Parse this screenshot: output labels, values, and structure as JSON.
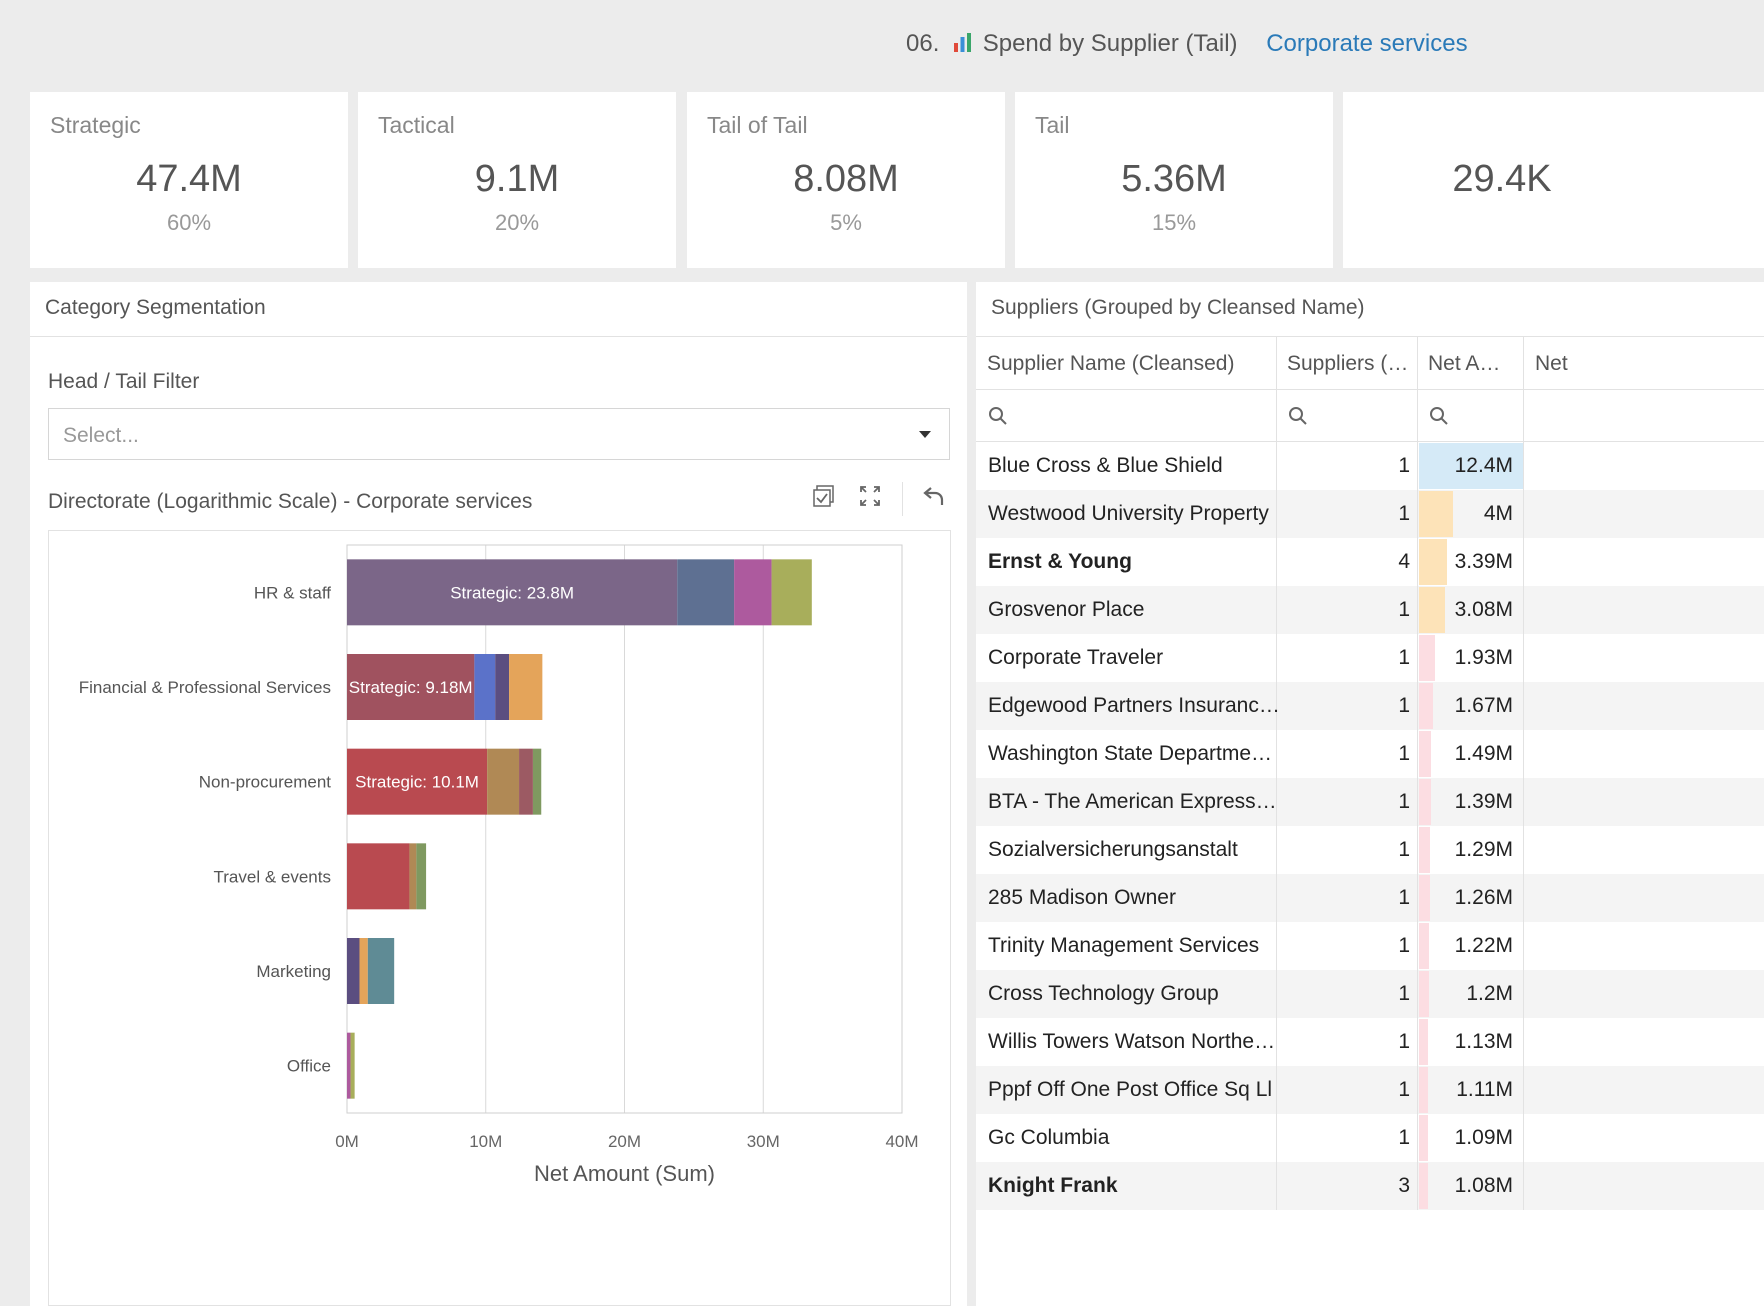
{
  "header": {
    "title_prefix": "06.",
    "title": "Spend by Supplier (Tail)",
    "link": "Corporate services",
    "chart_icon": "bar-chart-icon"
  },
  "kpis": [
    {
      "label": "Strategic",
      "value": "47.4M",
      "pct": "60%"
    },
    {
      "label": "Tactical",
      "value": "9.1M",
      "pct": "20%"
    },
    {
      "label": "Tail of Tail",
      "value": "8.08M",
      "pct": "5%"
    },
    {
      "label": "Tail",
      "value": "5.36M",
      "pct": "15%"
    },
    {
      "label": "",
      "value": "29.4K",
      "pct": ""
    }
  ],
  "segmentation": {
    "title": "Category Segmentation",
    "filter_label": "Head / Tail Filter",
    "filter_placeholder": "Select...",
    "chart_title": "Directorate (Logarithmic Scale) - Corporate services",
    "icons": [
      "checkbox-icon",
      "fullscreen-icon",
      "undo-icon"
    ]
  },
  "chart_data": {
    "type": "bar",
    "orientation": "horizontal",
    "stacked": true,
    "title": "Directorate (Logarithmic Scale) - Corporate services",
    "xlabel": "Net Amount (Sum)",
    "ylabel": "",
    "xlim": [
      0,
      40000000
    ],
    "x_ticks": [
      "0M",
      "10M",
      "20M",
      "30M",
      "40M"
    ],
    "categories": [
      "HR & staff",
      "Financial & Professional Services",
      "Non-procurement",
      "Travel & events",
      "Marketing",
      "Office"
    ],
    "grid": true,
    "rows": [
      {
        "category": "HR & staff",
        "segments": [
          {
            "value": 23800000,
            "color": "#7b6688",
            "label": "Strategic: 23.8M"
          },
          {
            "value": 4100000,
            "color": "#5e7092"
          },
          {
            "value": 2700000,
            "color": "#ad5a9e"
          },
          {
            "value": 2900000,
            "color": "#a8ae5b"
          }
        ]
      },
      {
        "category": "Financial & Professional Services",
        "segments": [
          {
            "value": 9180000,
            "color": "#a0525f",
            "label": "Strategic: 9.18M"
          },
          {
            "value": 1500000,
            "color": "#5b72c9"
          },
          {
            "value": 1000000,
            "color": "#5b4e80"
          },
          {
            "value": 2400000,
            "color": "#e4a45a"
          }
        ]
      },
      {
        "category": "Non-procurement",
        "segments": [
          {
            "value": 10100000,
            "color": "#b94a50",
            "label": "Strategic: 10.1M"
          },
          {
            "value": 2300000,
            "color": "#b08955"
          },
          {
            "value": 1000000,
            "color": "#9c5a63"
          },
          {
            "value": 600000,
            "color": "#7f9960"
          }
        ]
      },
      {
        "category": "Travel & events",
        "segments": [
          {
            "value": 4500000,
            "color": "#b94a50"
          },
          {
            "value": 500000,
            "color": "#b08955"
          },
          {
            "value": 700000,
            "color": "#7f9960"
          }
        ]
      },
      {
        "category": "Marketing",
        "segments": [
          {
            "value": 900000,
            "color": "#5b4e80"
          },
          {
            "value": 600000,
            "color": "#e4a45a"
          },
          {
            "value": 1900000,
            "color": "#5f8b95"
          }
        ]
      },
      {
        "category": "Office",
        "segments": [
          {
            "value": 250000,
            "color": "#ad5a9e"
          },
          {
            "value": 300000,
            "color": "#a8ae5b"
          }
        ]
      }
    ]
  },
  "suppliers": {
    "title": "Suppliers (Grouped by Cleansed Name)",
    "columns": [
      "Supplier Name (Cleansed)",
      "Suppliers (…",
      "Net A…",
      "Net"
    ],
    "search_icon": "search-icon",
    "max_amount": 12.4,
    "rows": [
      {
        "name": "Blue Cross & Blue Shield",
        "count": "1",
        "amount": "12.4M",
        "value": 12.4,
        "bold": false,
        "bar_color": "#d5eaf7"
      },
      {
        "name": "Westwood University Property",
        "count": "1",
        "amount": "4M",
        "value": 4.0,
        "bold": false,
        "bar_color": "#fde3b8"
      },
      {
        "name": "Ernst & Young",
        "count": "4",
        "amount": "3.39M",
        "value": 3.39,
        "bold": true,
        "bar_color": "#fde3b8"
      },
      {
        "name": "Grosvenor Place",
        "count": "1",
        "amount": "3.08M",
        "value": 3.08,
        "bold": false,
        "bar_color": "#fde3b8"
      },
      {
        "name": "Corporate Traveler",
        "count": "1",
        "amount": "1.93M",
        "value": 1.93,
        "bold": false,
        "bar_color": "#fcdde2"
      },
      {
        "name": "Edgewood Partners Insuranc…",
        "count": "1",
        "amount": "1.67M",
        "value": 1.67,
        "bold": false,
        "bar_color": "#fcdde2"
      },
      {
        "name": "Washington State Departme…",
        "count": "1",
        "amount": "1.49M",
        "value": 1.49,
        "bold": false,
        "bar_color": "#fcdde2"
      },
      {
        "name": "BTA - The American Express…",
        "count": "1",
        "amount": "1.39M",
        "value": 1.39,
        "bold": false,
        "bar_color": "#fcdde2"
      },
      {
        "name": "Sozialversicherungsanstalt",
        "count": "1",
        "amount": "1.29M",
        "value": 1.29,
        "bold": false,
        "bar_color": "#fcdde2"
      },
      {
        "name": "285 Madison Owner",
        "count": "1",
        "amount": "1.26M",
        "value": 1.26,
        "bold": false,
        "bar_color": "#fcdde2"
      },
      {
        "name": "Trinity Management Services",
        "count": "1",
        "amount": "1.22M",
        "value": 1.22,
        "bold": false,
        "bar_color": "#fcdde2"
      },
      {
        "name": "Cross Technology Group",
        "count": "1",
        "amount": "1.2M",
        "value": 1.2,
        "bold": false,
        "bar_color": "#fcdde2"
      },
      {
        "name": "Willis Towers Watson Northe…",
        "count": "1",
        "amount": "1.13M",
        "value": 1.13,
        "bold": false,
        "bar_color": "#fcdde2"
      },
      {
        "name": "Pppf Off One Post Office Sq Ll",
        "count": "1",
        "amount": "1.11M",
        "value": 1.11,
        "bold": false,
        "bar_color": "#fcdde2"
      },
      {
        "name": "Gc Columbia",
        "count": "1",
        "amount": "1.09M",
        "value": 1.09,
        "bold": false,
        "bar_color": "#fcdde2"
      },
      {
        "name": "Knight Frank",
        "count": "3",
        "amount": "1.08M",
        "value": 1.08,
        "bold": true,
        "bar_color": "#fcdde2"
      }
    ]
  }
}
